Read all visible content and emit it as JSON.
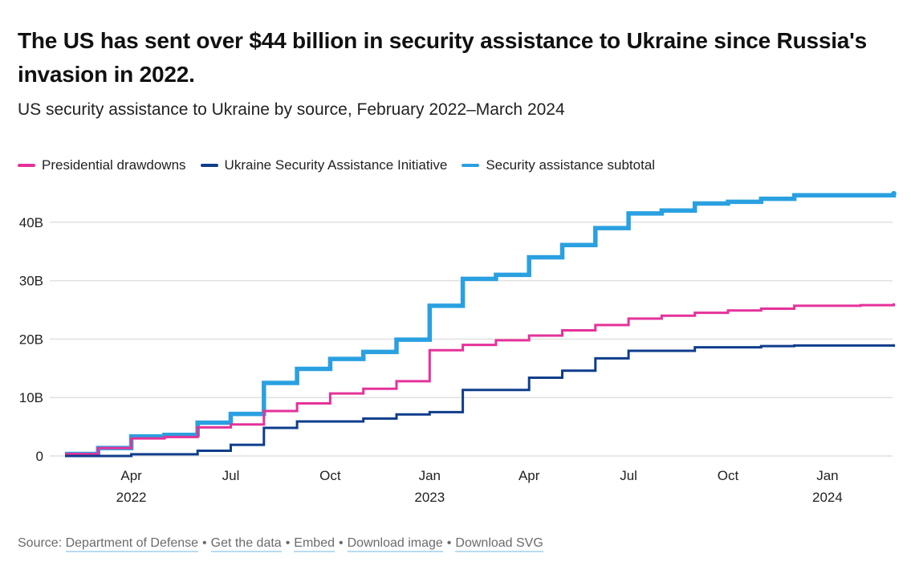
{
  "header": {
    "title": "The US has sent over $44 billion in security assistance to Ukraine since Russia's invasion in 2022.",
    "subtitle": "US security assistance to Ukraine by source, February 2022–March 2024"
  },
  "footer": {
    "source_label": "Source:",
    "links": [
      "Department of Defense",
      "Get the data",
      "Embed",
      "Download image",
      "Download SVG"
    ]
  },
  "chart_data": {
    "type": "line",
    "step": true,
    "title": "The US has sent over $44 billion in security assistance to Ukraine since Russia's invasion in 2022.",
    "subtitle": "US security assistance to Ukraine by source, February 2022–March 2024",
    "xlabel": "",
    "ylabel": "",
    "legend_position": "top-left",
    "grid": true,
    "ylim": [
      0,
      45
    ],
    "y_ticks": [
      0,
      10,
      20,
      30,
      40
    ],
    "y_tick_labels": [
      "0",
      "10B",
      "20B",
      "30B",
      "40B"
    ],
    "x_ticks": [
      {
        "month": "2022-04",
        "label": "Apr",
        "year_label": "2022"
      },
      {
        "month": "2022-07",
        "label": "Jul",
        "year_label": ""
      },
      {
        "month": "2022-10",
        "label": "Oct",
        "year_label": ""
      },
      {
        "month": "2023-01",
        "label": "Jan",
        "year_label": "2023"
      },
      {
        "month": "2023-04",
        "label": "Apr",
        "year_label": ""
      },
      {
        "month": "2023-07",
        "label": "Jul",
        "year_label": ""
      },
      {
        "month": "2023-10",
        "label": "Oct",
        "year_label": ""
      },
      {
        "month": "2024-01",
        "label": "Jan",
        "year_label": "2024"
      }
    ],
    "x": [
      "2022-02",
      "2022-03",
      "2022-04",
      "2022-05",
      "2022-06",
      "2022-07",
      "2022-08",
      "2022-09",
      "2022-10",
      "2022-11",
      "2022-12",
      "2023-01",
      "2023-02",
      "2023-03",
      "2023-04",
      "2023-05",
      "2023-06",
      "2023-07",
      "2023-08",
      "2023-09",
      "2023-10",
      "2023-11",
      "2023-12",
      "2024-01",
      "2024-02",
      "2024-03"
    ],
    "units": "billion USD",
    "series": [
      {
        "name": "Presidential drawdowns",
        "color": "#e5329a",
        "values": [
          0.35,
          1.35,
          3.0,
          3.25,
          4.9,
          5.4,
          7.7,
          9.0,
          10.7,
          11.5,
          12.8,
          18.1,
          19.0,
          19.8,
          20.6,
          21.5,
          22.4,
          23.5,
          24.0,
          24.5,
          24.9,
          25.2,
          25.7,
          25.7,
          25.8,
          25.9
        ]
      },
      {
        "name": "Ukraine Security Assistance Initiative",
        "color": "#0f3d8c",
        "values": [
          0.0,
          0.0,
          0.3,
          0.3,
          0.9,
          1.9,
          4.8,
          5.9,
          5.9,
          6.4,
          7.1,
          7.5,
          11.3,
          11.3,
          13.4,
          14.6,
          16.7,
          18.0,
          18.0,
          18.6,
          18.6,
          18.8,
          18.9,
          18.9,
          18.9,
          18.9
        ]
      },
      {
        "name": "Security assistance subtotal",
        "color": "#2aa0e0",
        "values": [
          0.35,
          1.35,
          3.35,
          3.6,
          5.7,
          7.2,
          12.5,
          14.9,
          16.6,
          17.8,
          19.9,
          25.7,
          30.3,
          31.0,
          34.0,
          36.1,
          39.0,
          41.5,
          42.0,
          43.2,
          43.5,
          44.0,
          44.6,
          44.6,
          44.6,
          44.9
        ]
      }
    ]
  }
}
